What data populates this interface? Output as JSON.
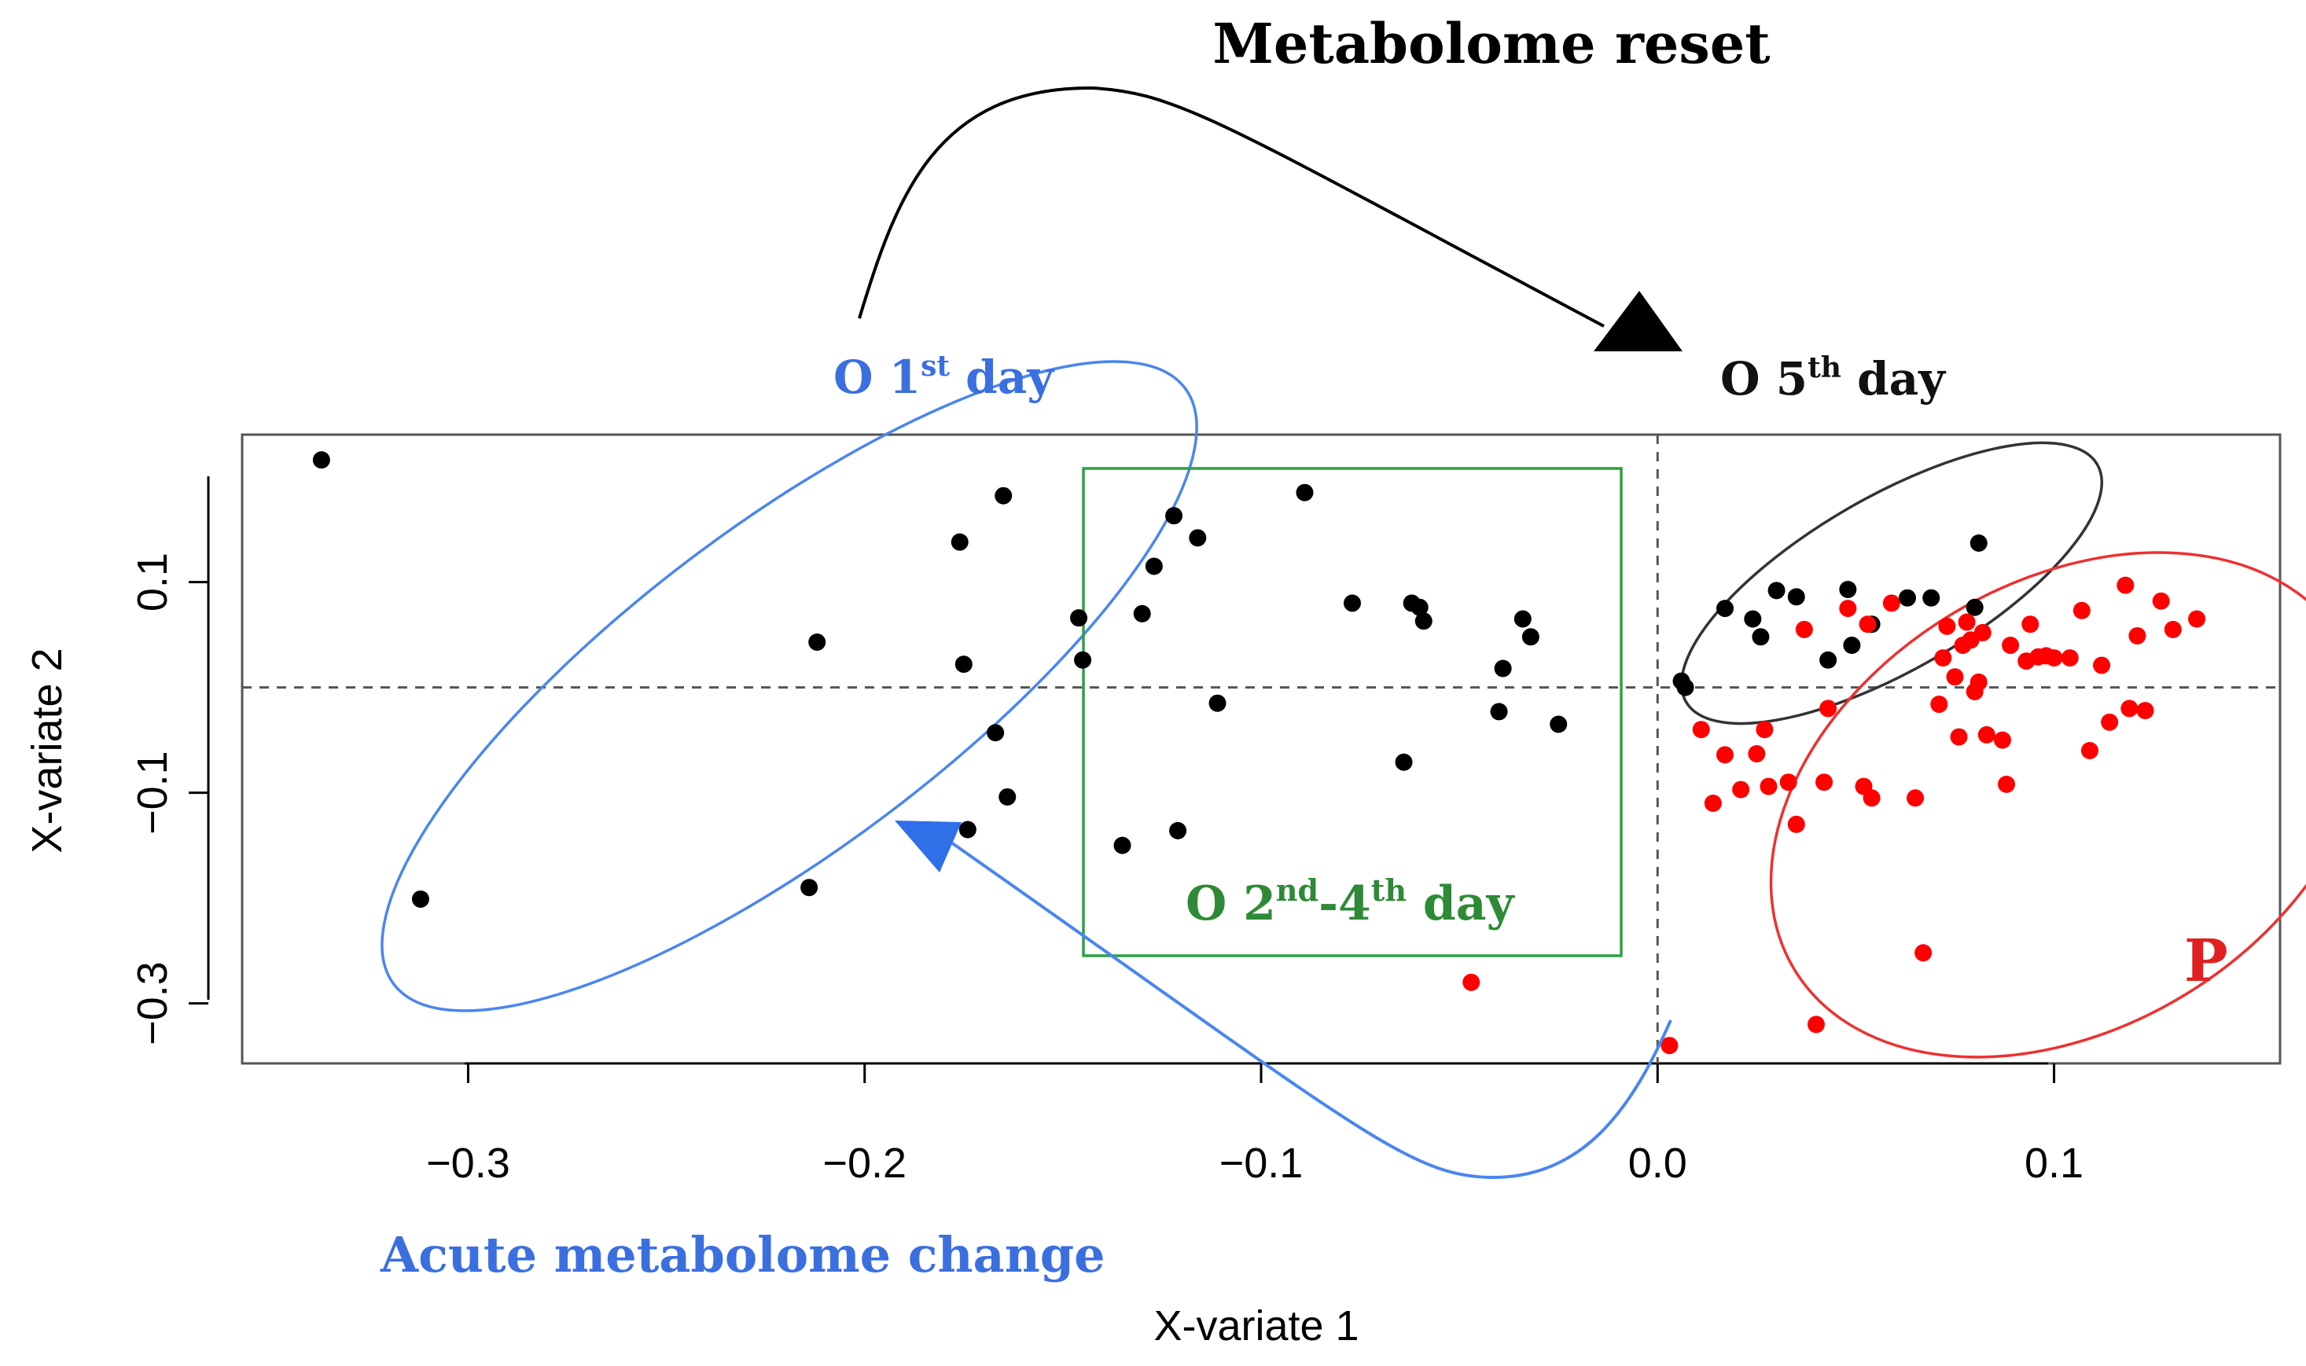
{
  "chart_data": {
    "type": "scatter",
    "title": "Metabolome reset",
    "xlabel": "X-variate 1",
    "ylabel": "X-variate 2",
    "xlim": [
      -0.357,
      0.157
    ],
    "ylim": [
      -0.357,
      0.24
    ],
    "x_ticks": [
      {
        "value": -0.3,
        "label": "−0.3"
      },
      {
        "value": -0.2,
        "label": "−0.2"
      },
      {
        "value": -0.1,
        "label": "−0.1"
      },
      {
        "value": 0.0,
        "label": "0.0"
      },
      {
        "value": 0.1,
        "label": "0.1"
      }
    ],
    "y_ticks": [
      {
        "value": -0.3,
        "label": "−0.3"
      },
      {
        "value": -0.1,
        "label": "−0.1"
      },
      {
        "value": 0.1,
        "label": "0.1"
      }
    ],
    "reference_lines": {
      "x": 0,
      "y": 0,
      "style": "dashed"
    },
    "annotations": {
      "o1": {
        "prefix": "O 1",
        "sup": "st",
        "suffix": " day",
        "color": "#3b6fe0"
      },
      "o5": {
        "prefix": "O 5",
        "sup": "th",
        "suffix": " day",
        "color": "#111111"
      },
      "o24_a": "O 2",
      "o24_a_sup": "nd",
      "o24_b": "-4",
      "o24_b_sup": "th",
      "o24_c": " day",
      "o24_color": "#2e8a36",
      "p": "P",
      "p_color": "#e02020",
      "acute": "Acute metabolome change",
      "acute_color": "#3b6fe0"
    },
    "series": [
      {
        "name": "O (1st-5th day)",
        "color": "#000000",
        "x": [
          -0.337,
          -0.312,
          -0.212,
          -0.214,
          -0.176,
          -0.175,
          -0.174,
          -0.167,
          -0.165,
          -0.164,
          -0.146,
          -0.145,
          -0.135,
          -0.13,
          -0.127,
          -0.122,
          -0.121,
          -0.116,
          -0.111,
          -0.089,
          -0.077,
          -0.062,
          -0.06,
          -0.059,
          -0.064,
          -0.039,
          -0.04,
          -0.034,
          -0.032,
          -0.025,
          0.006,
          0.007,
          0.017,
          0.024,
          0.026,
          0.03,
          0.035,
          0.043,
          0.048,
          0.049,
          0.054,
          0.063,
          0.069,
          0.08,
          0.081
        ],
        "y": [
          0.216,
          -0.201,
          0.043,
          -0.19,
          0.138,
          0.022,
          -0.135,
          -0.043,
          0.182,
          -0.104,
          0.066,
          0.026,
          -0.15,
          0.07,
          0.115,
          0.163,
          -0.136,
          0.142,
          -0.015,
          0.185,
          0.08,
          0.08,
          0.076,
          0.063,
          -0.071,
          0.018,
          -0.023,
          0.065,
          0.048,
          -0.035,
          0.006,
          0.0,
          0.075,
          0.065,
          0.048,
          0.092,
          0.086,
          0.026,
          0.093,
          0.04,
          0.06,
          0.085,
          0.085,
          0.076,
          0.137
        ]
      },
      {
        "name": "P",
        "color": "#ff0000",
        "x": [
          -0.047,
          0.003,
          0.011,
          0.014,
          0.017,
          0.021,
          0.025,
          0.027,
          0.028,
          0.033,
          0.035,
          0.037,
          0.04,
          0.042,
          0.043,
          0.048,
          0.052,
          0.053,
          0.054,
          0.059,
          0.065,
          0.067,
          0.071,
          0.072,
          0.073,
          0.075,
          0.076,
          0.077,
          0.078,
          0.079,
          0.08,
          0.081,
          0.082,
          0.083,
          0.087,
          0.088,
          0.089,
          0.093,
          0.094,
          0.096,
          0.098,
          0.1,
          0.104,
          0.107,
          0.109,
          0.112,
          0.114,
          0.118,
          0.119,
          0.121,
          0.123,
          0.127,
          0.13,
          0.136
        ],
        "y": [
          -0.28,
          -0.34,
          -0.04,
          -0.11,
          -0.064,
          -0.097,
          -0.063,
          -0.04,
          -0.094,
          -0.09,
          -0.13,
          0.055,
          -0.32,
          -0.09,
          -0.02,
          0.075,
          -0.094,
          0.06,
          -0.105,
          0.08,
          -0.105,
          -0.252,
          -0.016,
          0.028,
          0.058,
          0.01,
          -0.047,
          0.04,
          0.062,
          0.045,
          -0.004,
          0.005,
          0.052,
          -0.045,
          -0.05,
          -0.092,
          0.04,
          0.025,
          0.06,
          0.029,
          0.03,
          0.028,
          0.028,
          0.073,
          -0.06,
          0.021,
          -0.033,
          0.097,
          -0.02,
          0.049,
          -0.022,
          0.082,
          0.055,
          0.065
        ]
      }
    ]
  }
}
